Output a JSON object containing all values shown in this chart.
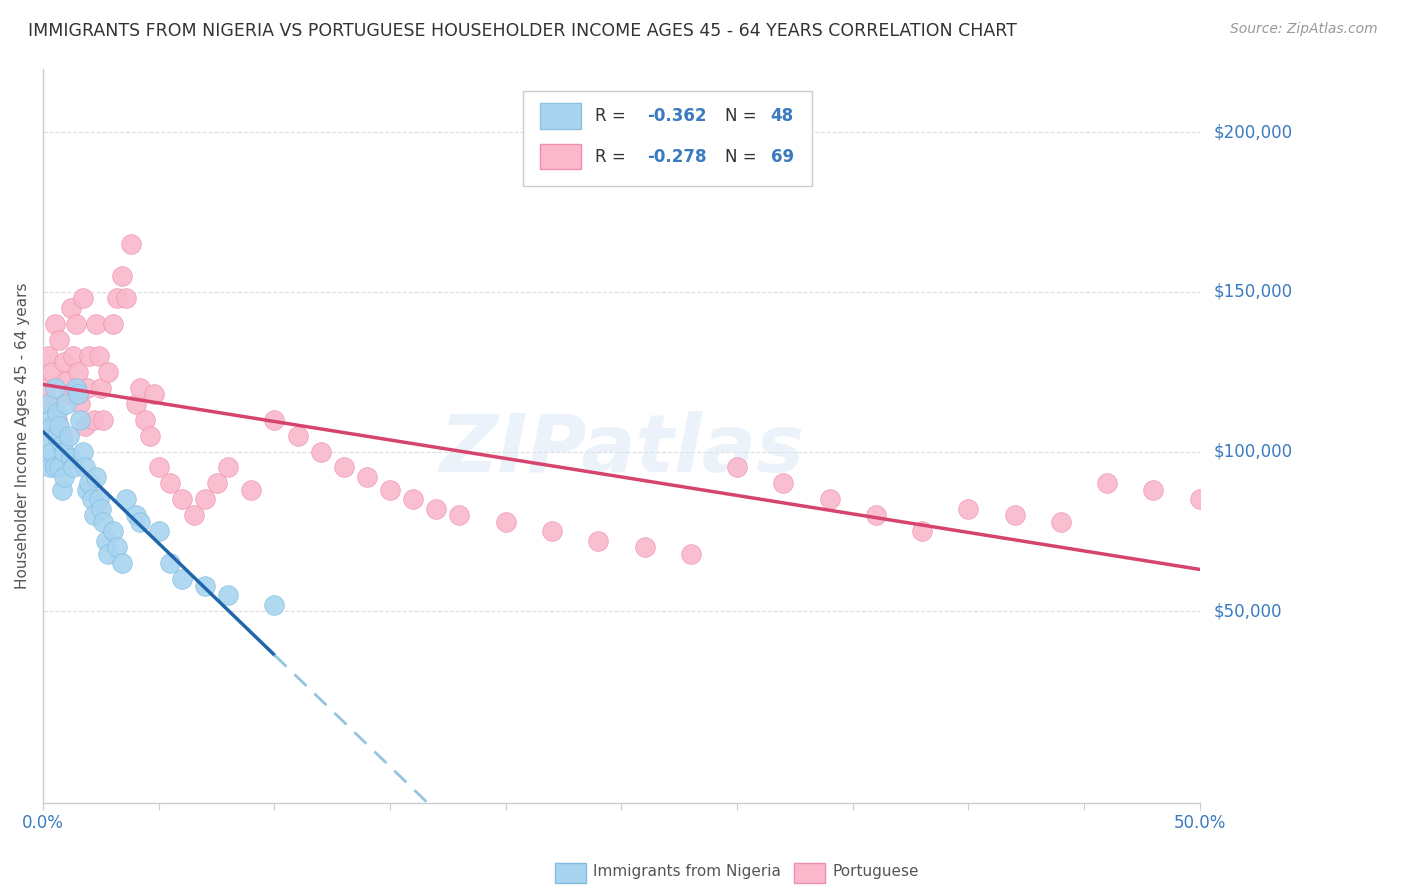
{
  "title": "IMMIGRANTS FROM NIGERIA VS PORTUGUESE HOUSEHOLDER INCOME AGES 45 - 64 YEARS CORRELATION CHART",
  "source": "Source: ZipAtlas.com",
  "ylabel": "Householder Income Ages 45 - 64 years",
  "ytick_labels": [
    "$50,000",
    "$100,000",
    "$150,000",
    "$200,000"
  ],
  "ytick_values": [
    50000,
    100000,
    150000,
    200000
  ],
  "legend_nigeria_r": "R = -0.362",
  "legend_nigeria_n": "N = 48",
  "legend_portuguese_r": "R = -0.278",
  "legend_portuguese_n": "N = 69",
  "nigeria_color": "#a8d4f0",
  "portuguese_color": "#f9b8cc",
  "nigeria_line_color": "#2166ac",
  "portuguese_line_color": "#d6446e",
  "nigeria_dash_color": "#92c5de",
  "xmin": 0.0,
  "xmax": 0.5,
  "ymin": -10000,
  "ymax": 220000,
  "nigeria_x": [
    0.001,
    0.002,
    0.002,
    0.003,
    0.003,
    0.004,
    0.004,
    0.005,
    0.005,
    0.006,
    0.006,
    0.007,
    0.007,
    0.008,
    0.008,
    0.009,
    0.009,
    0.01,
    0.011,
    0.012,
    0.013,
    0.014,
    0.015,
    0.016,
    0.017,
    0.018,
    0.019,
    0.02,
    0.021,
    0.022,
    0.023,
    0.024,
    0.025,
    0.026,
    0.027,
    0.028,
    0.03,
    0.032,
    0.034,
    0.036,
    0.04,
    0.042,
    0.05,
    0.055,
    0.06,
    0.07,
    0.08,
    0.1
  ],
  "nigeria_y": [
    105000,
    98000,
    115000,
    110000,
    95000,
    108000,
    100000,
    120000,
    95000,
    112000,
    105000,
    95000,
    108000,
    102000,
    88000,
    100000,
    92000,
    115000,
    105000,
    98000,
    95000,
    120000,
    118000,
    110000,
    100000,
    95000,
    88000,
    90000,
    85000,
    80000,
    92000,
    85000,
    82000,
    78000,
    72000,
    68000,
    75000,
    70000,
    65000,
    85000,
    80000,
    78000,
    75000,
    65000,
    60000,
    58000,
    55000,
    52000
  ],
  "portuguese_x": [
    0.001,
    0.002,
    0.003,
    0.004,
    0.005,
    0.006,
    0.007,
    0.008,
    0.009,
    0.01,
    0.011,
    0.012,
    0.013,
    0.014,
    0.015,
    0.016,
    0.017,
    0.018,
    0.019,
    0.02,
    0.022,
    0.023,
    0.024,
    0.025,
    0.026,
    0.028,
    0.03,
    0.032,
    0.034,
    0.036,
    0.038,
    0.04,
    0.042,
    0.044,
    0.046,
    0.048,
    0.05,
    0.055,
    0.06,
    0.065,
    0.07,
    0.075,
    0.08,
    0.09,
    0.1,
    0.11,
    0.12,
    0.13,
    0.14,
    0.15,
    0.16,
    0.17,
    0.18,
    0.2,
    0.22,
    0.24,
    0.26,
    0.28,
    0.3,
    0.32,
    0.34,
    0.36,
    0.38,
    0.4,
    0.42,
    0.44,
    0.46,
    0.48,
    0.5
  ],
  "portuguese_y": [
    120000,
    130000,
    115000,
    125000,
    140000,
    110000,
    135000,
    105000,
    128000,
    122000,
    118000,
    145000,
    130000,
    140000,
    125000,
    115000,
    148000,
    108000,
    120000,
    130000,
    110000,
    140000,
    130000,
    120000,
    110000,
    125000,
    140000,
    148000,
    155000,
    148000,
    165000,
    115000,
    120000,
    110000,
    105000,
    118000,
    95000,
    90000,
    85000,
    80000,
    85000,
    90000,
    95000,
    88000,
    110000,
    105000,
    100000,
    95000,
    92000,
    88000,
    85000,
    82000,
    80000,
    78000,
    75000,
    72000,
    70000,
    68000,
    95000,
    90000,
    85000,
    80000,
    75000,
    82000,
    80000,
    78000,
    90000,
    88000,
    85000
  ]
}
